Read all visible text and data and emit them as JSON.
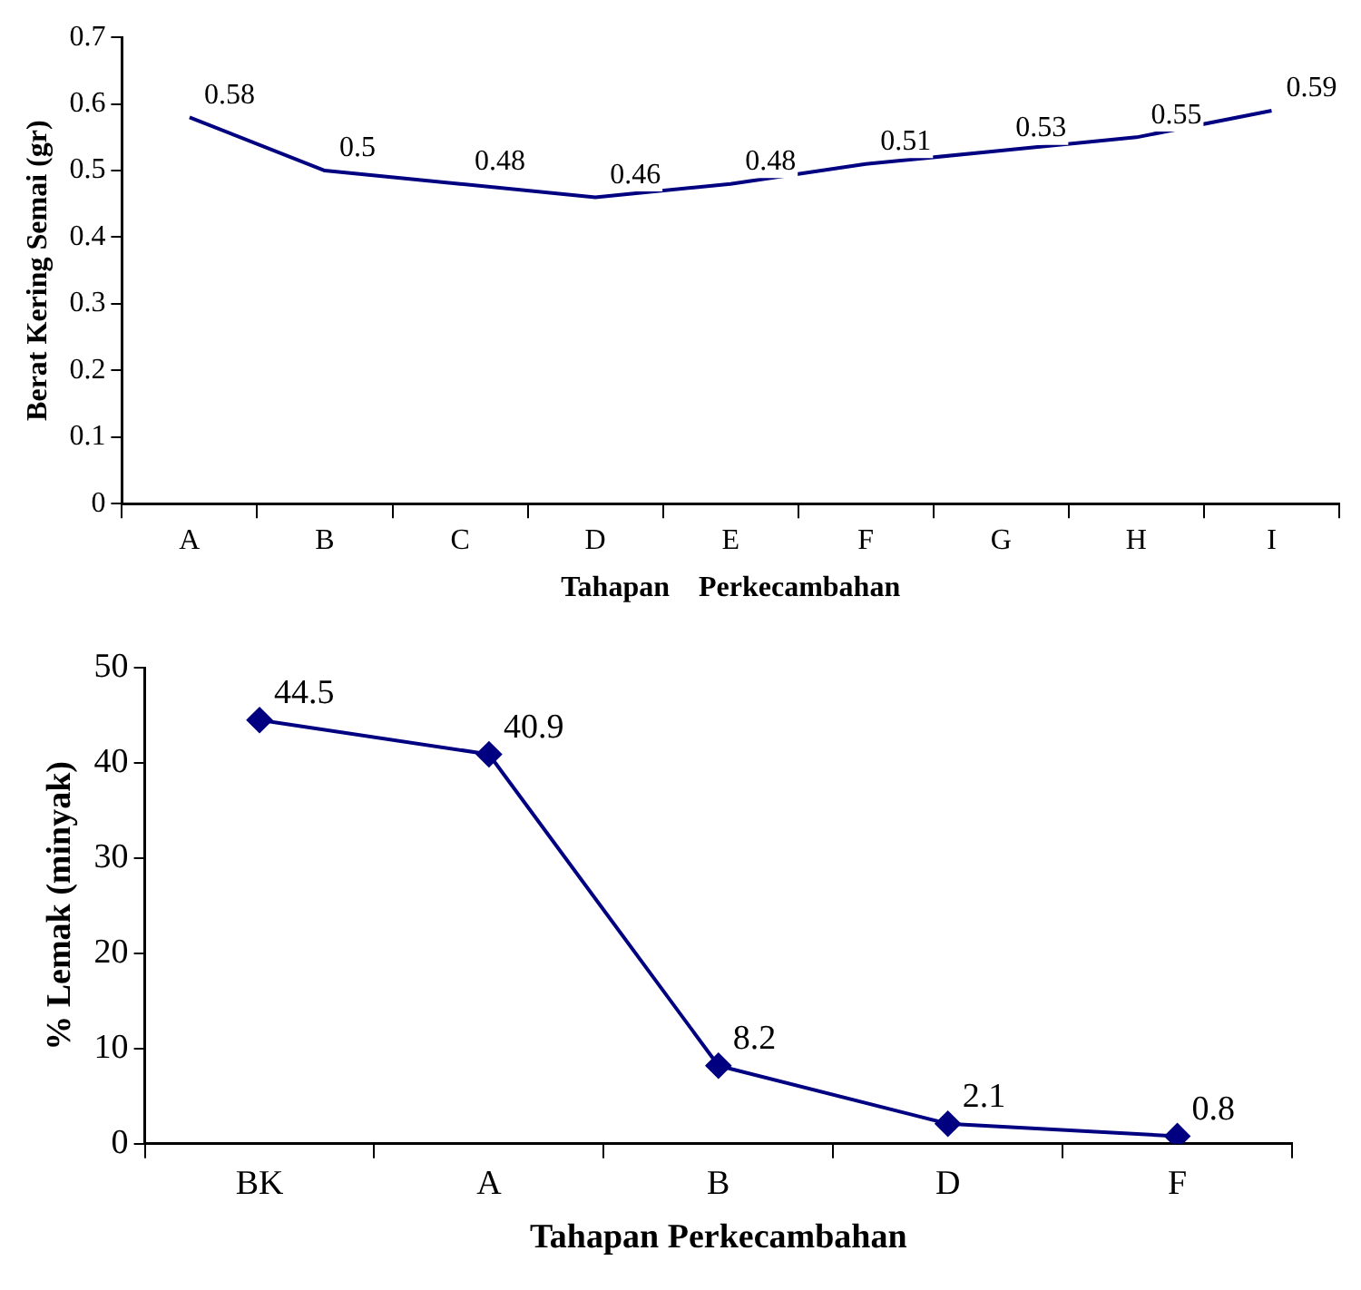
{
  "chart_data": [
    {
      "type": "line",
      "xlabel": "Tahapan    Perkecambahan",
      "ylabel": "Berat Kering Semai (gr)",
      "categories": [
        "A",
        "B",
        "C",
        "D",
        "E",
        "F",
        "G",
        "H",
        "I"
      ],
      "series": [
        {
          "color": "#000080",
          "values": [
            0.58,
            0.5,
            0.48,
            0.46,
            0.48,
            0.51,
            0.53,
            0.55,
            0.59
          ]
        }
      ],
      "ylim": [
        0,
        0.7
      ],
      "yticks": [
        0,
        0.1,
        0.2,
        0.3,
        0.4,
        0.5,
        0.6,
        0.7
      ],
      "data_labels": true,
      "grid": false,
      "legend": false,
      "marker": "none",
      "line_style": "solid"
    },
    {
      "type": "line",
      "xlabel": "Tahapan Perkecambahan",
      "ylabel": "% Lemak (minyak)",
      "categories": [
        "BK",
        "A",
        "B",
        "D",
        "F"
      ],
      "series": [
        {
          "color": "#000080",
          "values": [
            44.5,
            40.9,
            8.2,
            2.1,
            0.8
          ]
        }
      ],
      "ylim": [
        0,
        50
      ],
      "yticks": [
        0,
        10,
        20,
        30,
        40,
        50
      ],
      "data_labels": true,
      "grid": false,
      "legend": false,
      "marker": "diamond",
      "line_style": "solid"
    }
  ]
}
